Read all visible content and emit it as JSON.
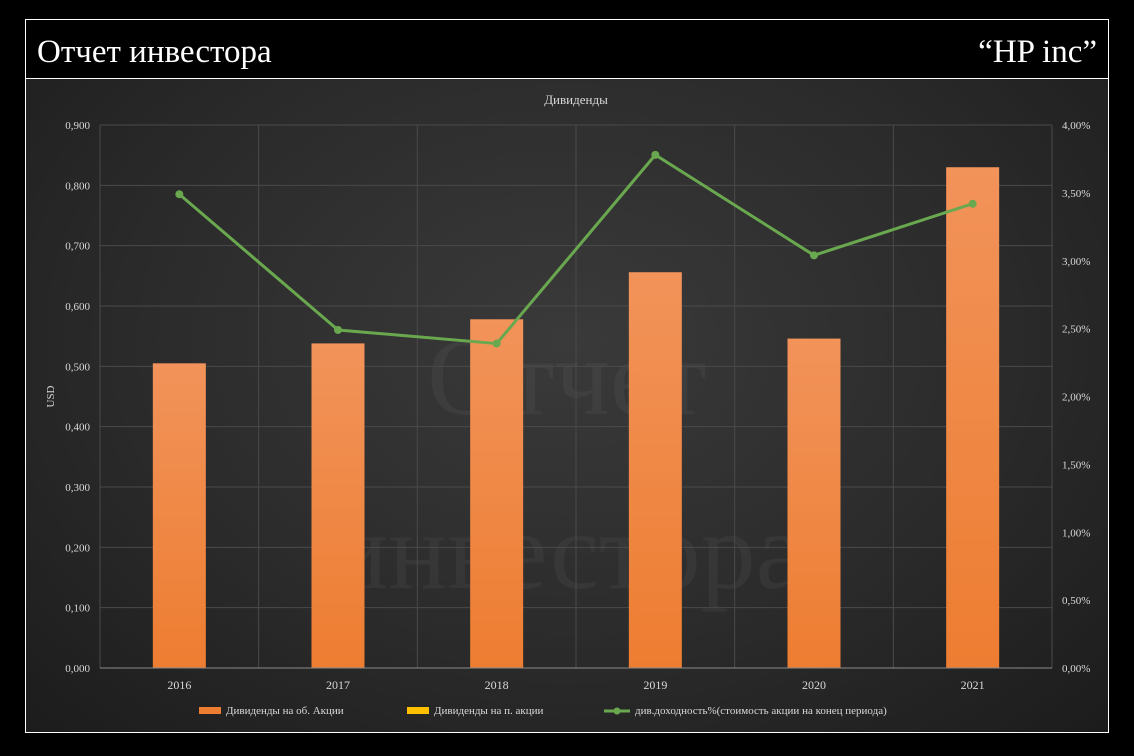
{
  "header": {
    "title": "Отчет инвестора",
    "company": "“HP inc”"
  },
  "watermark": [
    "Отчет",
    "инвестора"
  ],
  "colors": {
    "bar": "#ed7d31",
    "bar_light": "#f2935a",
    "line": "#6aa84f",
    "legend_yellow": "#ffc000",
    "grid": "#4a4a4a",
    "text": "#d9d9d9"
  },
  "chart_data": {
    "type": "bar",
    "title": "Дивиденды",
    "categories": [
      "2016",
      "2017",
      "2018",
      "2019",
      "2020",
      "2021"
    ],
    "ylabel": "USD",
    "ylim": [
      0,
      0.9
    ],
    "y_ticks": [
      "0,000",
      "0,100",
      "0,200",
      "0,300",
      "0,400",
      "0,500",
      "0,600",
      "0,700",
      "0,800",
      "0,900"
    ],
    "y2lim": [
      0,
      4
    ],
    "y2_ticks": [
      "0,00%",
      "0,50%",
      "1,00%",
      "1,50%",
      "2,00%",
      "2,50%",
      "3,00%",
      "3,50%",
      "4,00%"
    ],
    "grid": true,
    "legend_position": "bottom",
    "series": [
      {
        "name": "Дивиденды  на об. Акции",
        "type": "bar",
        "axis": "left",
        "values": [
          0.505,
          0.538,
          0.578,
          0.656,
          0.546,
          0.83
        ]
      },
      {
        "name": "Дивиденды  на п. акции",
        "type": "bar",
        "axis": "left",
        "values": [
          0,
          0,
          0,
          0,
          0,
          0
        ]
      },
      {
        "name": "див.доходность%(стоимость  акции на конец периода)",
        "type": "line",
        "axis": "right",
        "values": [
          3.49,
          2.49,
          2.39,
          3.78,
          3.04,
          3.42
        ]
      }
    ]
  }
}
